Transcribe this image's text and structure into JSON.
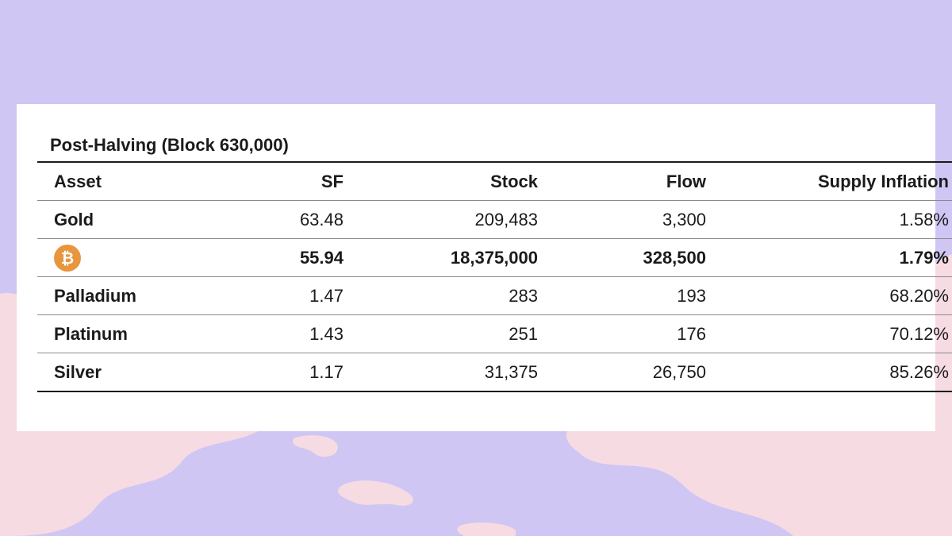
{
  "chart_data": {
    "type": "table",
    "title": "Post-Halving (Block 630,000)",
    "columns": [
      "Asset",
      "SF",
      "Stock",
      "Flow",
      "Supply Inflation"
    ],
    "rows": [
      {
        "asset": "Gold",
        "sf": "63.48",
        "stock": "209,483",
        "flow": "3,300",
        "inflation": "1.58%",
        "highlight": false
      },
      {
        "asset": "",
        "asset_icon": "bitcoin-icon",
        "sf": "55.94",
        "stock": "18,375,000",
        "flow": "328,500",
        "inflation": "1.79%",
        "highlight": true
      },
      {
        "asset": "Palladium",
        "sf": "1.47",
        "stock": "283",
        "flow": "193",
        "inflation": "68.20%",
        "highlight": false
      },
      {
        "asset": "Platinum",
        "sf": "1.43",
        "stock": "251",
        "flow": "176",
        "inflation": "70.12%",
        "highlight": false
      },
      {
        "asset": "Silver",
        "sf": "1.17",
        "stock": "31,375",
        "flow": "26,750",
        "inflation": "85.26%",
        "highlight": false
      }
    ]
  },
  "colors": {
    "background": "#d0c6f4",
    "blob": "#f7dbe3",
    "highlight_text": "#5b3fd4",
    "bitcoin_orange": "#e8963e"
  }
}
